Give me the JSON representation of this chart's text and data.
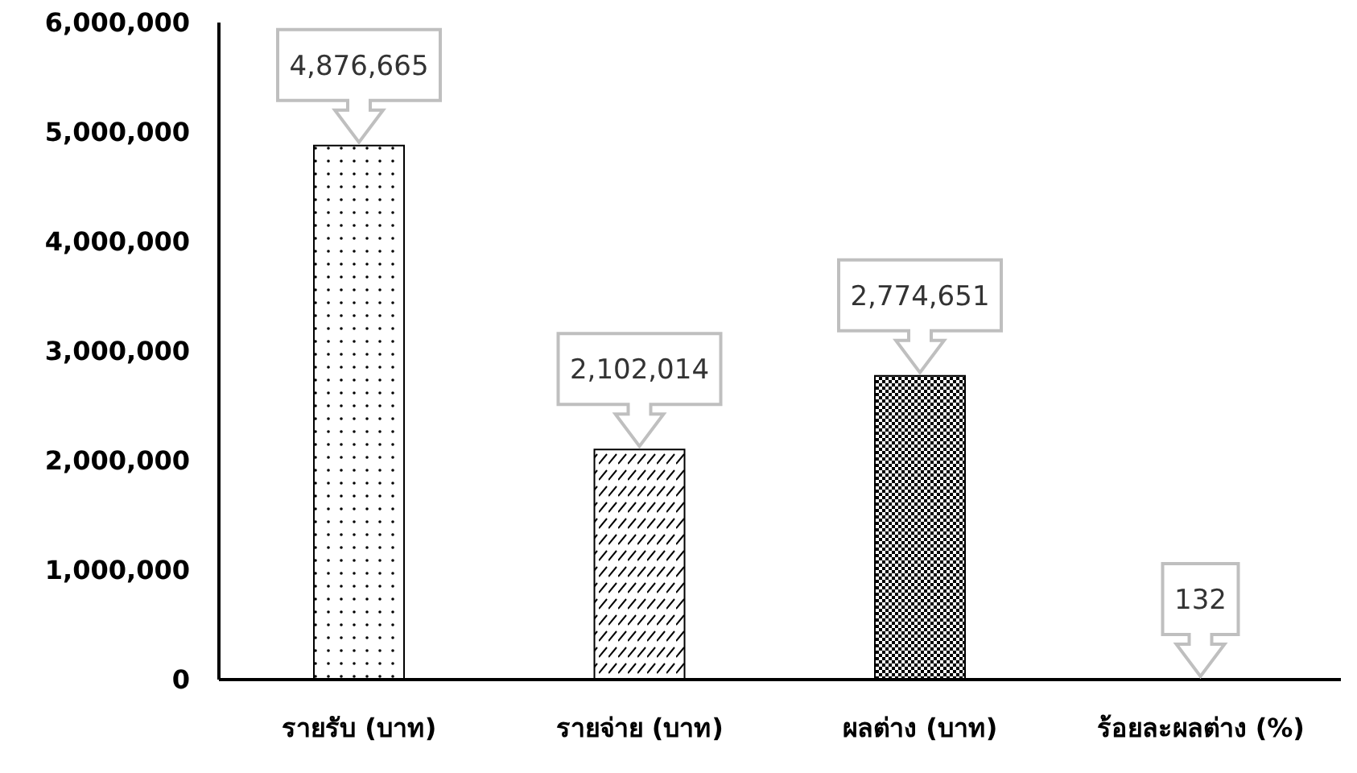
{
  "chart_data": {
    "type": "bar",
    "categories": [
      "รายรับ (บาท)",
      "รายจ่าย (บาท)",
      "ผลต่าง (บาท)",
      "ร้อยละผลต่าง (%)"
    ],
    "values": [
      4876665,
      2102014,
      2774651,
      132
    ],
    "value_labels": [
      "4,876,665",
      "2,102,014",
      "2,774,651",
      "132"
    ],
    "color": "#000000",
    "ylim": [
      0,
      6000000
    ],
    "yticks": [
      0,
      {
        "value": 1000000,
        "label": "1,000,000"
      },
      {
        "value": 2000000,
        "label": "2,000,000"
      },
      {
        "value": 3000000,
        "label": "3,000,000"
      },
      {
        "value": 4000000,
        "label": "4,000,000"
      },
      {
        "value": 5000000,
        "label": "5,000,000"
      },
      {
        "value": 6000000,
        "label": "6,000,000"
      }
    ],
    "grid": false
  }
}
